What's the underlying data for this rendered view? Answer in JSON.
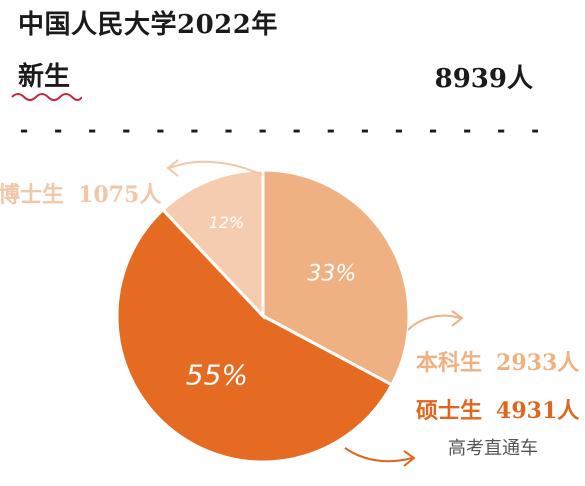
{
  "header": {
    "title": "中国人民大学2022年",
    "subtitle": "新生",
    "total": "8939人"
  },
  "colors": {
    "bachelor": "#efb182",
    "master": "#e56b22",
    "phd": "#f5ccb0",
    "separator": "#ffffff"
  },
  "chart_data": {
    "type": "pie",
    "slices": [
      {
        "name": "本科生",
        "value": 2933,
        "count_label": "2933人",
        "percent_label": "33%"
      },
      {
        "name": "硕士生",
        "value": 4931,
        "count_label": "4931人",
        "percent_label": "55%"
      },
      {
        "name": "博士生",
        "value": 1075,
        "count_label": "1075人",
        "percent_label": "12%"
      }
    ]
  },
  "watermark": "高考直通车"
}
